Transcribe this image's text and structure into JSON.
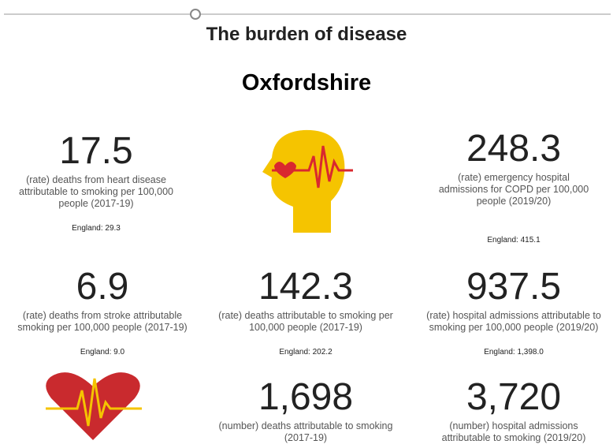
{
  "header": {
    "title": "The burden of disease",
    "area": "Oxfordshire"
  },
  "tiles": [
    {
      "value": "17.5",
      "description": "(rate) deaths from heart disease attributable to smoking per 100,000 people (2017-19)",
      "england": "England: 29.3"
    },
    {
      "value": "248.3",
      "description": "(rate) emergency hospital admissions for COPD per 100,000 people (2019/20)",
      "england": "England: 415.1"
    },
    {
      "value": "6.9",
      "description": "(rate) deaths from stroke attributable smoking per 100,000 people (2017-19)",
      "england": "England: 9.0"
    },
    {
      "value": "142.3",
      "description": "(rate) deaths attributable to smoking per 100,000 people (2017-19)",
      "england": "England: 202.2"
    },
    {
      "value": "937.5",
      "description": "(rate) hospital admissions attributable to smoking per 100,000 people (2019/20)",
      "england": "England: 1,398.0"
    },
    {
      "value": "1,698",
      "description": "(number) deaths attributable to smoking (2017-19)",
      "england": null
    },
    {
      "value": "3,720",
      "description": "(number) hospital admissions attributable to smoking (2019/20)",
      "england": null
    }
  ]
}
